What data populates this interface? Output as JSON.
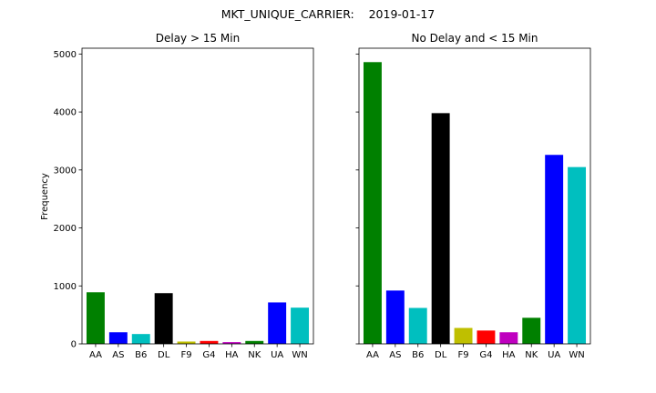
{
  "figure": {
    "suptitle": "MKT_UNIQUE_CARRIER:    2019-01-17"
  },
  "chart_data": [
    {
      "type": "bar",
      "title": "Delay > 15 Min",
      "xlabel": "",
      "ylabel": "Frequency",
      "ylim": [
        0,
        5100
      ],
      "yticks": [
        0,
        1000,
        2000,
        3000,
        4000,
        5000
      ],
      "categories": [
        "AA",
        "AS",
        "B6",
        "DL",
        "F9",
        "G4",
        "HA",
        "NK",
        "UA",
        "WN"
      ],
      "values": [
        890,
        200,
        170,
        875,
        40,
        50,
        30,
        50,
        715,
        625
      ],
      "colors": [
        "#008000",
        "#0000ff",
        "#00bfbf",
        "#000000",
        "#bfbf00",
        "#ff0000",
        "#bf00bf",
        "#008000",
        "#0000ff",
        "#00bfbf"
      ],
      "grid": false,
      "legend": "none"
    },
    {
      "type": "bar",
      "title": "No Delay and < 15 Min",
      "xlabel": "",
      "ylabel": "",
      "ylim": [
        0,
        5100
      ],
      "yticks": [
        0,
        1000,
        2000,
        3000,
        4000,
        5000
      ],
      "categories": [
        "AA",
        "AS",
        "B6",
        "DL",
        "F9",
        "G4",
        "HA",
        "NK",
        "UA",
        "WN"
      ],
      "values": [
        4860,
        920,
        620,
        3980,
        275,
        230,
        200,
        450,
        3260,
        3050
      ],
      "colors": [
        "#008000",
        "#0000ff",
        "#00bfbf",
        "#000000",
        "#bfbf00",
        "#ff0000",
        "#bf00bf",
        "#008000",
        "#0000ff",
        "#00bfbf"
      ],
      "grid": false,
      "legend": "none",
      "sharey": true
    }
  ]
}
